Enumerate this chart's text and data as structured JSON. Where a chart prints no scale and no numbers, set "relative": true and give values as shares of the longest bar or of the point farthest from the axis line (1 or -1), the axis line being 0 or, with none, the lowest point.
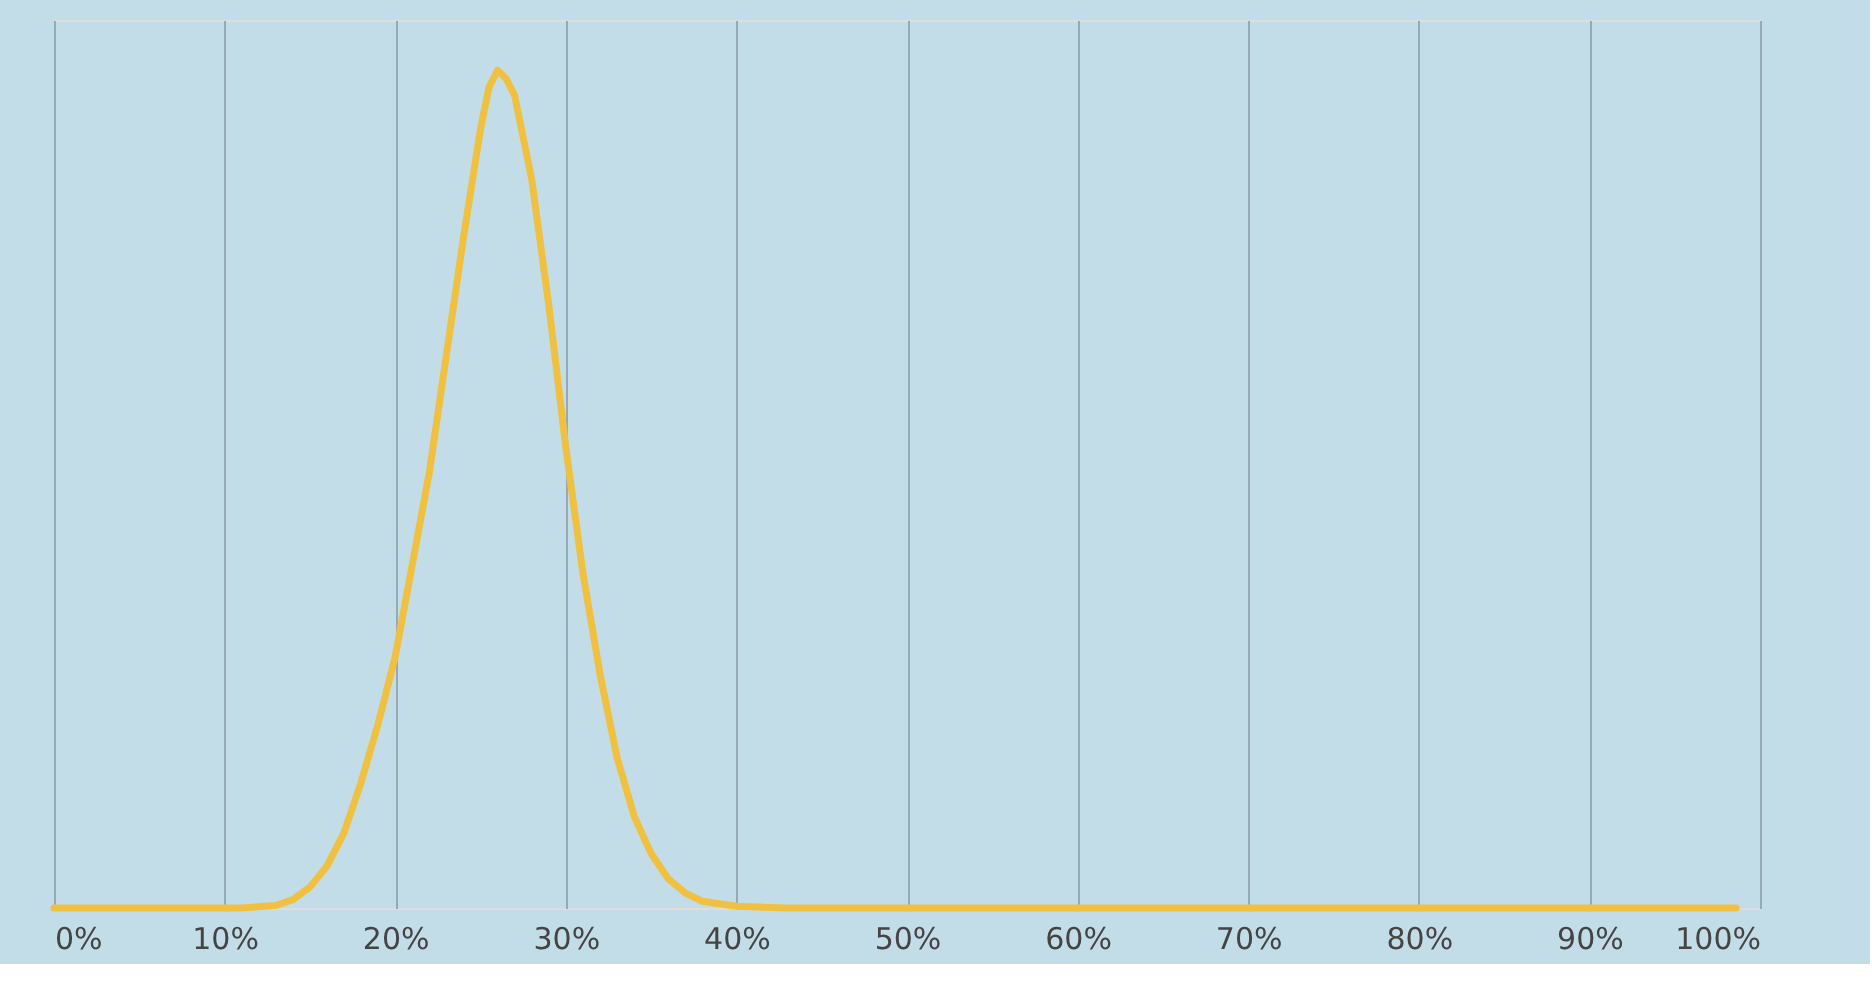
{
  "chart_data": {
    "type": "line",
    "relative": true,
    "x": [
      0,
      4,
      8,
      11,
      13,
      14,
      15,
      16,
      17,
      18,
      19,
      20,
      21,
      22,
      23,
      24,
      25,
      25.5,
      26,
      26.5,
      27,
      28,
      29,
      30,
      31,
      32,
      33,
      34,
      35,
      36,
      37,
      38,
      40,
      43,
      50,
      60,
      70,
      80,
      90,
      98.6
    ],
    "series": [
      {
        "color": "#f0c040",
        "values": [
          0,
          0,
          0,
          0,
          0.003,
          0.01,
          0.025,
          0.05,
          0.09,
          0.15,
          0.22,
          0.3,
          0.41,
          0.52,
          0.66,
          0.8,
          0.93,
          0.98,
          1,
          0.99,
          0.97,
          0.87,
          0.72,
          0.55,
          0.4,
          0.28,
          0.18,
          0.11,
          0.065,
          0.035,
          0.018,
          0.008,
          0.002,
          0,
          0,
          0,
          0,
          0,
          0,
          0
        ]
      }
    ],
    "xlim": [
      0,
      100
    ],
    "xticks": [
      {
        "value": 0,
        "label": "0%"
      },
      {
        "value": 10,
        "label": "10%"
      },
      {
        "value": 20,
        "label": "20%"
      },
      {
        "value": 30,
        "label": "30%"
      },
      {
        "value": 40,
        "label": "40%"
      },
      {
        "value": 50,
        "label": "50%"
      },
      {
        "value": 60,
        "label": "60%"
      },
      {
        "value": 70,
        "label": "70%"
      },
      {
        "value": 80,
        "label": "80%"
      },
      {
        "value": 90,
        "label": "90%"
      },
      {
        "value": 100,
        "label": "100%"
      }
    ],
    "grid": "x",
    "marker": "none",
    "line_style": "solid"
  }
}
